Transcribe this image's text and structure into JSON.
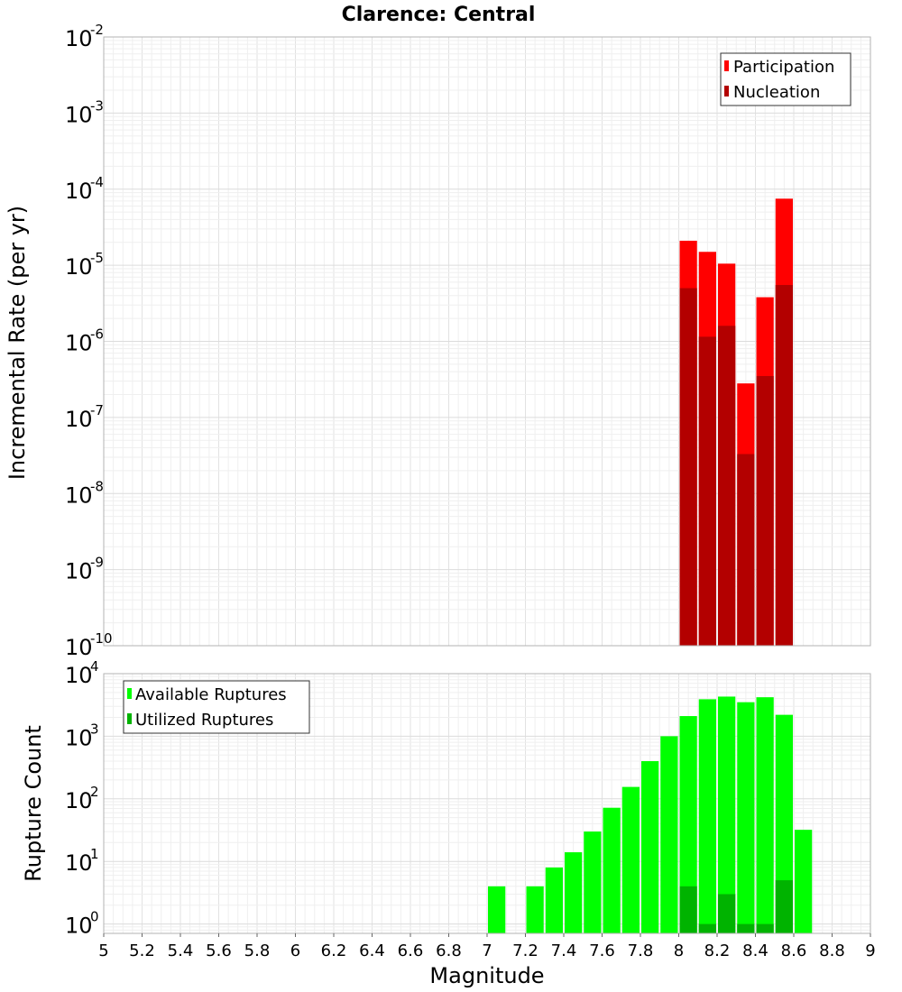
{
  "chart_data": [
    {
      "type": "bar",
      "title": "Clarence: Central",
      "xlabel": "",
      "ylabel": "Incremental Rate (per yr)",
      "yscale": "log",
      "ylim_exp": [
        -10,
        -2
      ],
      "xlim": [
        5,
        9
      ],
      "bin_width": 0.1,
      "grid": true,
      "legend_position": "top-right",
      "y_ticks": [
        {
          "base": "10",
          "exp": "-2"
        },
        {
          "base": "10",
          "exp": "-3"
        },
        {
          "base": "10",
          "exp": "-4"
        },
        {
          "base": "10",
          "exp": "-5"
        },
        {
          "base": "10",
          "exp": "-6"
        },
        {
          "base": "10",
          "exp": "-7"
        },
        {
          "base": "10",
          "exp": "-8"
        },
        {
          "base": "10",
          "exp": "-9"
        },
        {
          "base": "10",
          "exp": "-10"
        }
      ],
      "series": [
        {
          "name": "Participation",
          "color": "#ff0000",
          "x": [
            8.05,
            8.15,
            8.25,
            8.35,
            8.45,
            8.55
          ],
          "values": [
            2.1e-05,
            1.5e-05,
            1.05e-05,
            2.8e-07,
            3.8e-06,
            7.5e-05
          ]
        },
        {
          "name": "Nucleation",
          "color": "#b30000",
          "x": [
            8.05,
            8.15,
            8.25,
            8.35,
            8.45,
            8.55
          ],
          "values": [
            5e-06,
            1.15e-06,
            1.6e-06,
            3.3e-08,
            3.5e-07,
            5.5e-06
          ]
        }
      ]
    },
    {
      "type": "bar",
      "title": "",
      "xlabel": "Magnitude",
      "ylabel": "Rupture Count",
      "yscale": "log",
      "ylim_exp": [
        -0.15,
        4
      ],
      "xlim": [
        5,
        9
      ],
      "bin_width": 0.1,
      "grid": true,
      "legend_position": "top-left",
      "y_ticks": [
        {
          "base": "10",
          "exp": "4"
        },
        {
          "base": "10",
          "exp": "3"
        },
        {
          "base": "10",
          "exp": "2"
        },
        {
          "base": "10",
          "exp": "1"
        },
        {
          "base": "10",
          "exp": "0"
        }
      ],
      "x_ticks": [
        "5",
        "5.2",
        "5.4",
        "5.6",
        "5.8",
        "6",
        "6.2",
        "6.4",
        "6.6",
        "6.8",
        "7",
        "7.2",
        "7.4",
        "7.6",
        "7.8",
        "8",
        "8.2",
        "8.4",
        "8.6",
        "8.8",
        "9"
      ],
      "series": [
        {
          "name": "Available Ruptures",
          "color": "#00ff00",
          "x": [
            7.05,
            7.25,
            7.35,
            7.45,
            7.55,
            7.65,
            7.75,
            7.85,
            7.95,
            8.05,
            8.15,
            8.25,
            8.35,
            8.45,
            8.55,
            8.65
          ],
          "values": [
            4,
            4,
            8,
            14,
            30,
            72,
            155,
            400,
            1000,
            2100,
            3900,
            4300,
            3500,
            4200,
            2200,
            32
          ]
        },
        {
          "name": "Utilized Ruptures",
          "color": "#00b300",
          "x": [
            8.05,
            8.15,
            8.25,
            8.35,
            8.45,
            8.55
          ],
          "values": [
            4,
            1,
            3,
            1,
            1,
            5
          ]
        }
      ]
    }
  ]
}
